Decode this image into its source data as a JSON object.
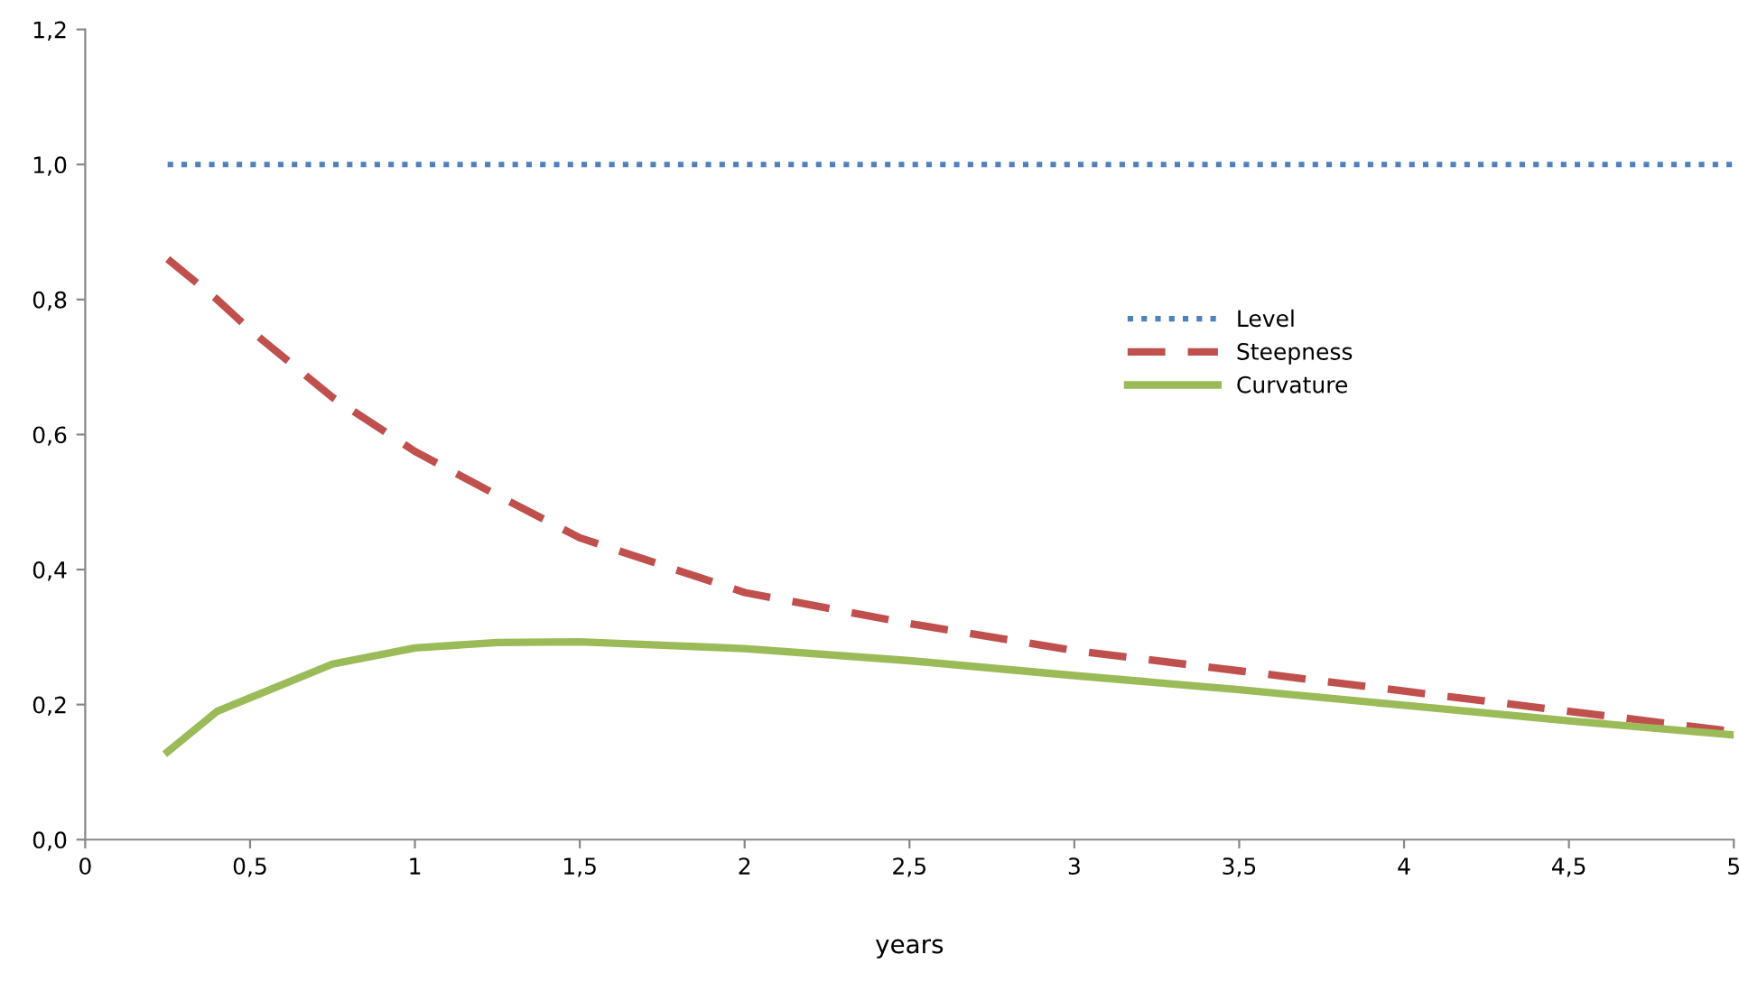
{
  "chart_data": {
    "type": "line",
    "xlabel": "years",
    "xlim": [
      0,
      5
    ],
    "ylim": [
      0,
      1.2
    ],
    "xticks": [
      0,
      {
        "value": 0.5,
        "label": "0,5"
      },
      1,
      {
        "value": 1.5,
        "label": "1,5"
      },
      2,
      {
        "value": 2.5,
        "label": "2,5"
      },
      3,
      {
        "value": 3.5,
        "label": "3,5"
      },
      4,
      {
        "value": 4.5,
        "label": "4,5"
      },
      5
    ],
    "yticks": [
      {
        "value": 0,
        "label": "0,0"
      },
      {
        "value": 0.2,
        "label": "0,2"
      },
      {
        "value": 0.4,
        "label": "0,4"
      },
      {
        "value": 0.6,
        "label": "0,6"
      },
      {
        "value": 0.8,
        "label": "0,8"
      },
      {
        "value": 1.0,
        "label": "1,0"
      },
      {
        "value": 1.2,
        "label": "1,2"
      }
    ],
    "x": [
      0.25,
      0.4,
      0.5,
      0.75,
      1,
      1.25,
      1.5,
      2,
      2.5,
      3,
      3.5,
      4,
      4.5,
      5
    ],
    "series": [
      {
        "name": "Level",
        "color": "#4f81bd",
        "line_style": "dotted",
        "values": [
          1,
          1,
          1,
          1,
          1,
          1,
          1,
          1,
          1,
          1,
          1,
          1,
          1,
          1
        ]
      },
      {
        "name": "Steepness",
        "color": "#c0504d",
        "line_style": "dashed",
        "values": [
          0.86,
          0.8,
          0.755,
          0.655,
          0.575,
          0.51,
          0.447,
          0.366,
          0.32,
          0.28,
          0.25,
          0.22,
          0.19,
          0.16
        ]
      },
      {
        "name": "Curvature",
        "color": "#9bbb59",
        "line_style": "solid",
        "values": [
          0.13,
          0.19,
          0.21,
          0.26,
          0.284,
          0.292,
          0.293,
          0.283,
          0.265,
          0.243,
          0.222,
          0.199,
          0.176,
          0.155
        ]
      }
    ],
    "grid": false,
    "legend": "right",
    "marker": "none"
  }
}
